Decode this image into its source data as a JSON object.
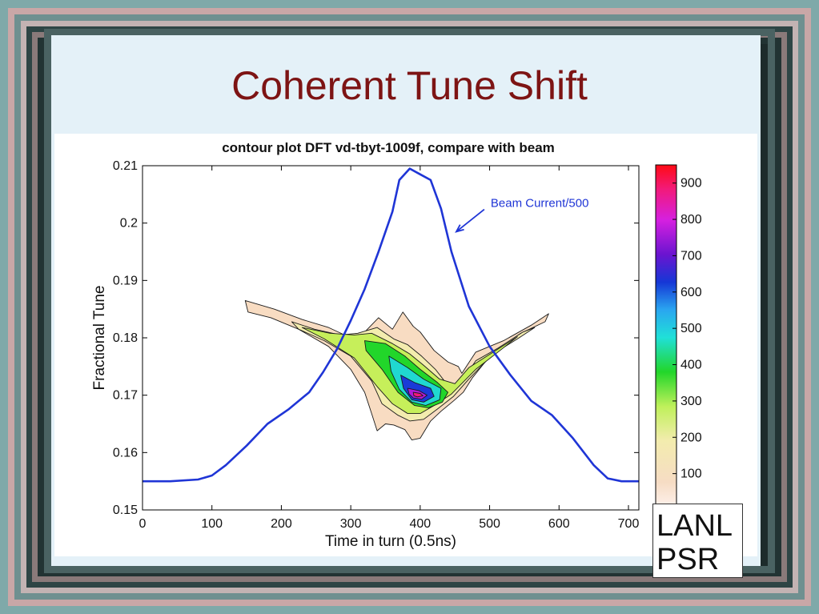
{
  "slide": {
    "title": "Coherent Tune Shift",
    "badge_lines": [
      "LANL",
      "PSR"
    ]
  },
  "colors": {
    "title": "#7d1414",
    "beam_line": "#1f35d6",
    "annotation": "#1f35d6"
  },
  "chart_data": {
    "type": "contour",
    "title": "contour plot DFT vd-tbyt-1009f, compare with beam",
    "xlabel": "Time in turn (0.5ns)",
    "ylabel": "Fractional Tune",
    "xlim": [
      0,
      715
    ],
    "ylim": [
      0.15,
      0.21
    ],
    "xticks": [
      0,
      100,
      200,
      300,
      400,
      500,
      600,
      700
    ],
    "xtick_labels": [
      "0",
      "100",
      "200",
      "300",
      "400",
      "500",
      "600",
      "700"
    ],
    "yticks": [
      0.15,
      0.16,
      0.17,
      0.18,
      0.19,
      0.2,
      0.21
    ],
    "ytick_labels": [
      "0.15",
      "0.16",
      "0.17",
      "0.18",
      "0.19",
      "0.2",
      "0.21"
    ],
    "grid": false,
    "series": [
      {
        "name": "Beam Current/500",
        "type": "line",
        "x": [
          0,
          40,
          80,
          100,
          120,
          150,
          180,
          210,
          240,
          260,
          280,
          300,
          320,
          340,
          360,
          370,
          385,
          400,
          415,
          430,
          445,
          470,
          500,
          530,
          560,
          590,
          620,
          650,
          670,
          690,
          715
        ],
        "y": [
          0.155,
          0.155,
          0.1553,
          0.156,
          0.1578,
          0.1612,
          0.165,
          0.1675,
          0.1705,
          0.174,
          0.178,
          0.183,
          0.1885,
          0.195,
          0.202,
          0.2075,
          0.2095,
          0.2085,
          0.2075,
          0.2025,
          0.195,
          0.1855,
          0.1785,
          0.1735,
          0.169,
          0.1665,
          0.1625,
          0.1578,
          0.1555,
          0.155,
          0.155
        ]
      }
    ],
    "contour_regions": [
      {
        "level": 10,
        "points": [
          [
            148,
            0.1865
          ],
          [
            190,
            0.185
          ],
          [
            230,
            0.1832
          ],
          [
            268,
            0.1818
          ],
          [
            300,
            0.18
          ],
          [
            320,
            0.181
          ],
          [
            340,
            0.1835
          ],
          [
            360,
            0.1815
          ],
          [
            375,
            0.1845
          ],
          [
            390,
            0.182
          ],
          [
            400,
            0.181
          ],
          [
            420,
            0.1778
          ],
          [
            440,
            0.1758
          ],
          [
            455,
            0.175
          ],
          [
            460,
            0.1738
          ],
          [
            480,
            0.1775
          ],
          [
            520,
            0.1795
          ],
          [
            560,
            0.1822
          ],
          [
            585,
            0.1842
          ],
          [
            580,
            0.1828
          ],
          [
            545,
            0.1808
          ],
          [
            505,
            0.1775
          ],
          [
            475,
            0.173
          ],
          [
            462,
            0.1705
          ],
          [
            448,
            0.169
          ],
          [
            430,
            0.1672
          ],
          [
            415,
            0.1655
          ],
          [
            400,
            0.1625
          ],
          [
            388,
            0.1622
          ],
          [
            378,
            0.164
          ],
          [
            362,
            0.1648
          ],
          [
            350,
            0.165
          ],
          [
            338,
            0.1638
          ],
          [
            330,
            0.1668
          ],
          [
            320,
            0.1705
          ],
          [
            300,
            0.1745
          ],
          [
            268,
            0.1785
          ],
          [
            225,
            0.1815
          ],
          [
            185,
            0.1835
          ],
          [
            152,
            0.1845
          ]
        ]
      },
      {
        "level": 100,
        "points": [
          [
            215,
            0.1828
          ],
          [
            248,
            0.1815
          ],
          [
            285,
            0.1805
          ],
          [
            310,
            0.1808
          ],
          [
            338,
            0.1818
          ],
          [
            362,
            0.1798
          ],
          [
            382,
            0.1788
          ],
          [
            402,
            0.1768
          ],
          [
            422,
            0.1745
          ],
          [
            438,
            0.172
          ],
          [
            458,
            0.172
          ],
          [
            480,
            0.176
          ],
          [
            512,
            0.1782
          ],
          [
            548,
            0.181
          ],
          [
            565,
            0.1818
          ],
          [
            540,
            0.1798
          ],
          [
            505,
            0.1772
          ],
          [
            470,
            0.1728
          ],
          [
            448,
            0.1698
          ],
          [
            425,
            0.1676
          ],
          [
            405,
            0.1658
          ],
          [
            385,
            0.1655
          ],
          [
            368,
            0.1665
          ],
          [
            345,
            0.1685
          ],
          [
            330,
            0.1725
          ],
          [
            300,
            0.1768
          ],
          [
            262,
            0.1795
          ],
          [
            225,
            0.1815
          ]
        ]
      },
      {
        "level": 200,
        "points": [
          [
            230,
            0.1818
          ],
          [
            270,
            0.1808
          ],
          [
            305,
            0.1805
          ],
          [
            330,
            0.1808
          ],
          [
            360,
            0.179
          ],
          [
            385,
            0.1772
          ],
          [
            405,
            0.1752
          ],
          [
            428,
            0.1728
          ],
          [
            450,
            0.172
          ],
          [
            470,
            0.1748
          ],
          [
            505,
            0.1775
          ],
          [
            540,
            0.1802
          ],
          [
            515,
            0.1778
          ],
          [
            480,
            0.1745
          ],
          [
            445,
            0.1702
          ],
          [
            420,
            0.1682
          ],
          [
            400,
            0.1668
          ],
          [
            382,
            0.1668
          ],
          [
            360,
            0.1685
          ],
          [
            338,
            0.1715
          ],
          [
            305,
            0.1765
          ],
          [
            262,
            0.1798
          ]
        ]
      },
      {
        "level": 300,
        "points": [
          [
            320,
            0.1795
          ],
          [
            350,
            0.179
          ],
          [
            378,
            0.1768
          ],
          [
            400,
            0.1745
          ],
          [
            425,
            0.1722
          ],
          [
            440,
            0.1705
          ],
          [
            432,
            0.1688
          ],
          [
            412,
            0.1678
          ],
          [
            392,
            0.1682
          ],
          [
            368,
            0.1705
          ],
          [
            345,
            0.1745
          ],
          [
            322,
            0.1778
          ]
        ]
      },
      {
        "level": 450,
        "points": [
          [
            355,
            0.1768
          ],
          [
            382,
            0.1748
          ],
          [
            405,
            0.1728
          ],
          [
            430,
            0.1712
          ],
          [
            428,
            0.1692
          ],
          [
            408,
            0.1682
          ],
          [
            388,
            0.1688
          ],
          [
            370,
            0.171
          ],
          [
            358,
            0.1742
          ]
        ]
      },
      {
        "level": 600,
        "points": [
          [
            372,
            0.1735
          ],
          [
            392,
            0.1722
          ],
          [
            415,
            0.1712
          ],
          [
            420,
            0.1698
          ],
          [
            405,
            0.1688
          ],
          [
            388,
            0.1692
          ],
          [
            376,
            0.1712
          ]
        ]
      },
      {
        "level": 750,
        "points": [
          [
            382,
            0.1712
          ],
          [
            398,
            0.1708
          ],
          [
            410,
            0.17
          ],
          [
            402,
            0.1693
          ],
          [
            390,
            0.1695
          ],
          [
            384,
            0.1702
          ]
        ]
      },
      {
        "level": 900,
        "points": [
          [
            390,
            0.1705
          ],
          [
            400,
            0.1703
          ],
          [
            404,
            0.1699
          ],
          [
            396,
            0.1697
          ],
          [
            391,
            0.1699
          ]
        ]
      }
    ],
    "annotations": [
      {
        "text": "Beam Current/500",
        "x": 490,
        "y": 0.2035,
        "arrow_to": [
          452,
          0.1985
        ]
      }
    ],
    "colorbar": {
      "range": [
        0,
        950
      ],
      "ticks": [
        100,
        200,
        300,
        400,
        500,
        600,
        700,
        800,
        900
      ],
      "tick_labels": [
        "100",
        "200",
        "300",
        "400",
        "500",
        "600",
        "700",
        "800",
        "900"
      ]
    }
  }
}
